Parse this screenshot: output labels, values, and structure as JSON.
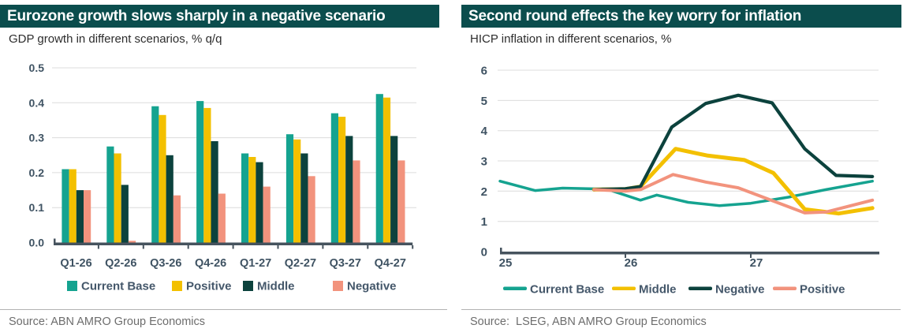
{
  "colors": {
    "title_bg": "#0b4d4d",
    "teal": "#15a390",
    "yellow": "#f3c000",
    "dark": "#0c423d",
    "salmon": "#f2937d",
    "grid": "#dcdcdc",
    "axis": "#46535e",
    "tick_text": "#3f5363",
    "legend_text": "#44576a",
    "subtitle_text": "#2d2d2d",
    "source_text": "#6d6d6d",
    "separator": "#b3b3b3"
  },
  "panels": [
    {
      "title": "Eurozone growth slows sharply in a negative scenario",
      "subtitle": "GDP growth in different scenarios, % q/q",
      "source": "Source: ABN AMRO Group Economics"
    },
    {
      "title": "Second round effects the key worry for inflation",
      "subtitle": "HICP inflation in different scenarios, %",
      "source": "Source:  LSEG, ABN AMRO Group Economics"
    }
  ],
  "chart_data": [
    {
      "type": "bar",
      "title": "Eurozone growth slows sharply in a negative scenario",
      "xlabel": "",
      "ylabel": "GDP growth, % q/q",
      "categories": [
        "Q1-26",
        "Q2-26",
        "Q3-26",
        "Q4-26",
        "Q1-27",
        "Q2-27",
        "Q3-27",
        "Q4-27"
      ],
      "series": [
        {
          "name": "Current Base",
          "color_key": "teal",
          "values": [
            0.21,
            0.275,
            0.39,
            0.405,
            0.255,
            0.31,
            0.37,
            0.425
          ]
        },
        {
          "name": "Positive",
          "color_key": "yellow",
          "values": [
            0.21,
            0.255,
            0.365,
            0.385,
            0.245,
            0.295,
            0.36,
            0.415
          ]
        },
        {
          "name": "Middle",
          "color_key": "dark",
          "values": [
            0.15,
            0.165,
            0.25,
            0.29,
            0.23,
            0.255,
            0.305,
            0.305
          ]
        },
        {
          "name": "Negative",
          "color_key": "salmon",
          "values": [
            0.15,
            0.005,
            0.135,
            0.14,
            0.16,
            0.19,
            0.235,
            0.235
          ]
        }
      ],
      "ylim": [
        0,
        0.5
      ],
      "yticks": [
        0,
        0.1,
        0.2,
        0.3,
        0.4,
        0.5
      ],
      "ytick_labels": [
        "0.0",
        "0.1",
        "0.2",
        "0.3",
        "0.4",
        "0.5"
      ],
      "grid": true,
      "legend_position": "bottom"
    },
    {
      "type": "line",
      "title": "Second round effects the key worry for inflation",
      "xlabel": "",
      "ylabel": "HICP inflation, %",
      "xlim": [
        25,
        28.03
      ],
      "xticks": [
        25,
        26,
        27
      ],
      "xtick_labels": [
        "25",
        "26",
        "27"
      ],
      "ylim": [
        0,
        6
      ],
      "yticks": [
        0,
        1,
        2,
        3,
        4,
        5,
        6
      ],
      "ytick_labels": [
        "0",
        "1",
        "2",
        "3",
        "4",
        "5",
        "6"
      ],
      "grid": true,
      "legend_position": "bottom",
      "x_unit": "year (25 = 2025, quarterly/monthly positions as fractions)",
      "series": [
        {
          "name": "Current Base",
          "color_key": "teal",
          "points": [
            [
              25.0,
              2.33
            ],
            [
              25.28,
              2.02
            ],
            [
              25.5,
              2.1
            ],
            [
              25.85,
              2.07
            ],
            [
              26.12,
              1.7
            ],
            [
              26.25,
              1.87
            ],
            [
              26.5,
              1.63
            ],
            [
              26.75,
              1.52
            ],
            [
              27.0,
              1.6
            ],
            [
              27.3,
              1.8
            ],
            [
              27.6,
              2.05
            ],
            [
              27.97,
              2.33
            ]
          ]
        },
        {
          "name": "Middle",
          "color_key": "yellow",
          "points": [
            [
              25.75,
              2.05
            ],
            [
              26.0,
              2.07
            ],
            [
              26.12,
              2.15
            ],
            [
              26.4,
              3.4
            ],
            [
              26.65,
              3.18
            ],
            [
              26.95,
              3.03
            ],
            [
              27.18,
              2.6
            ],
            [
              27.43,
              1.4
            ],
            [
              27.7,
              1.26
            ],
            [
              27.97,
              1.44
            ]
          ]
        },
        {
          "name": "Negative",
          "color_key": "dark",
          "points": [
            [
              25.75,
              2.05
            ],
            [
              26.0,
              2.08
            ],
            [
              26.12,
              2.15
            ],
            [
              26.37,
              4.12
            ],
            [
              26.64,
              4.9
            ],
            [
              26.9,
              5.17
            ],
            [
              27.17,
              4.92
            ],
            [
              27.43,
              3.4
            ],
            [
              27.68,
              2.52
            ],
            [
              27.97,
              2.48
            ]
          ]
        },
        {
          "name": "Positive",
          "color_key": "salmon",
          "points": [
            [
              25.75,
              2.05
            ],
            [
              26.0,
              2.0
            ],
            [
              26.12,
              2.05
            ],
            [
              26.38,
              2.55
            ],
            [
              26.64,
              2.3
            ],
            [
              26.9,
              2.11
            ],
            [
              27.43,
              1.28
            ],
            [
              27.6,
              1.31
            ],
            [
              27.97,
              1.7
            ]
          ]
        }
      ]
    }
  ]
}
